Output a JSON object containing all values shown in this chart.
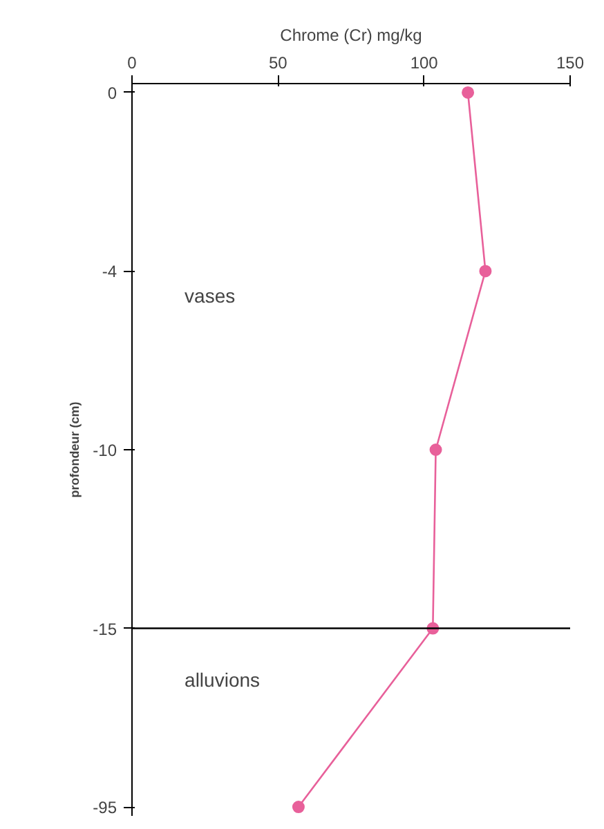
{
  "chart_data": {
    "type": "line",
    "orientation": "horizontal",
    "xlabel": "Chrome (Cr) mg/kg",
    "ylabel": "profondeur (cm)",
    "categories": [
      "0",
      "-4",
      "-10",
      "-15",
      "-95"
    ],
    "series": [
      {
        "color": "#e8609a",
        "values": [
          115,
          121,
          104,
          103,
          57
        ]
      }
    ],
    "xlim": [
      0,
      150
    ],
    "xticks": [
      0,
      50,
      100,
      150
    ],
    "ref_lines": [
      {
        "axis": "y",
        "value": "-15",
        "color": "#000000"
      }
    ],
    "annotations": [
      "vases",
      "alluvions"
    ],
    "marker": "circle",
    "grid": false
  }
}
